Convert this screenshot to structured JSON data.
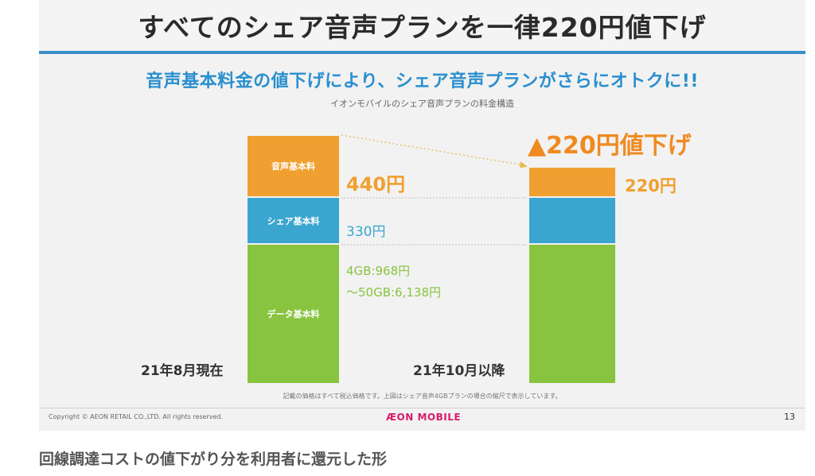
{
  "slide": {
    "title": "すべてのシェア音声プランを一律220円値下げ",
    "subtitle": "音声基本料金の値下げにより、シェア音声プランがさらにオトクに!!",
    "chart_caption": "イオンモバイルのシェア音声プランの料金構造",
    "before": {
      "segments": {
        "voice": "音声基本料",
        "share": "シェア基本料",
        "data": "データ基本料"
      },
      "voice_price": "440円",
      "share_price": "330円",
      "data_price_4gb": "4GB:968円",
      "data_price_50gb": "～50GB:6,138円",
      "period": "21年8月現在"
    },
    "after": {
      "discount": "▲220円値下げ",
      "voice_price": "220円",
      "period": "21年10月以降"
    },
    "note": "記載の価格はすべて税込価格です。上図はシェア音声4GBプランの場合の縮尺で表示しています。",
    "copyright": "Copyright © AEON RETAIL CO.,LTD. All rights reserved.",
    "logo": "ÆON MOBILE",
    "page_number": "13"
  },
  "caption": "回線調達コストの値下がり分を利用者に還元した形"
}
